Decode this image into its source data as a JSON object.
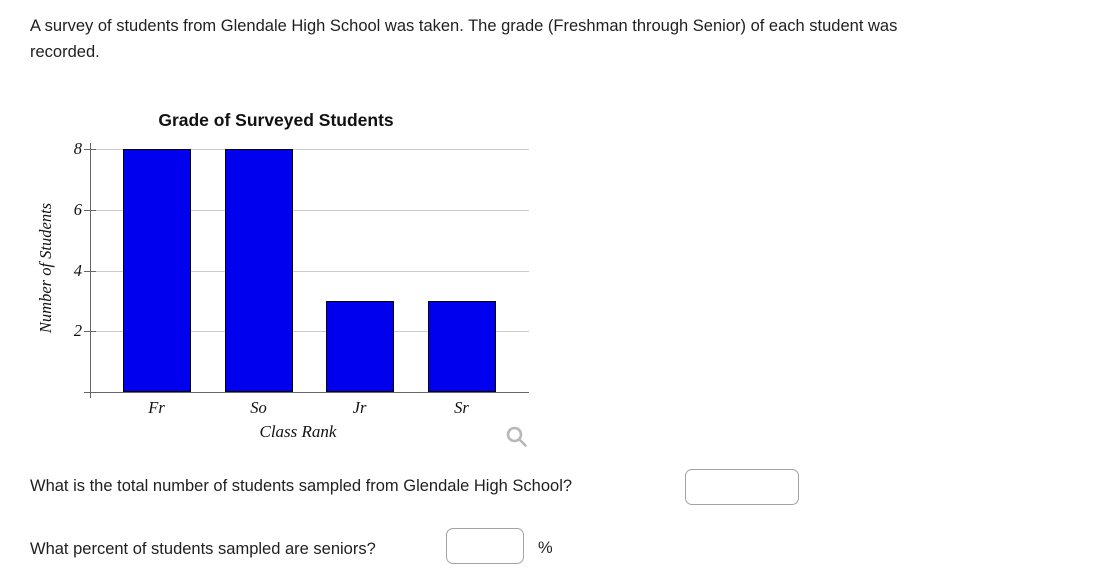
{
  "intro": "A survey of students from Glendale High School was taken. The grade (Freshman through Senior) of each student was recorded.",
  "chart_data": {
    "type": "bar",
    "title": "Grade of Surveyed Students",
    "categories": [
      "Fr",
      "So",
      "Jr",
      "Sr"
    ],
    "values": [
      8,
      8,
      3,
      3
    ],
    "xlabel": "Class Rank",
    "ylabel": "Number of Students",
    "ylim": [
      0,
      8
    ],
    "yticks": [
      2,
      4,
      6,
      8
    ],
    "grid": true,
    "legend": false,
    "bar_color": "#0000ee",
    "bar_border_color": "#000000",
    "gridline_color": "#cccccc",
    "axis_color": "#666666"
  },
  "icons": {
    "zoom": "magnifier",
    "zoom_color": "#b8b8b8"
  },
  "questions": [
    {
      "text": "What is the total number of students sampled from Glendale High School?",
      "input_value": "",
      "suffix": ""
    },
    {
      "text": "What percent of students sampled are seniors?",
      "input_value": "",
      "suffix": "%"
    }
  ]
}
